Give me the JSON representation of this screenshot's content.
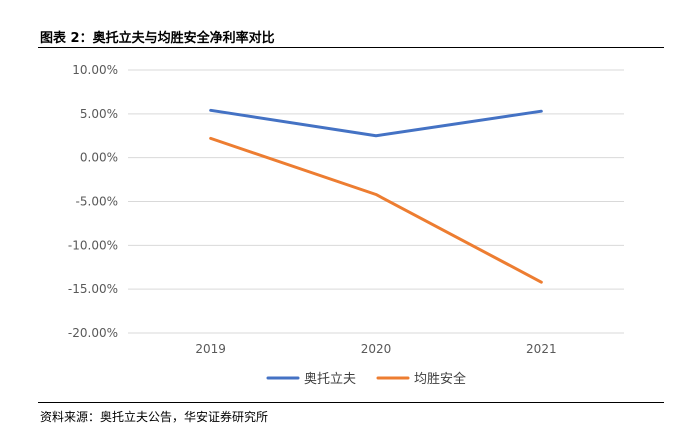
{
  "figure": {
    "title": "图表 2：奥托立夫与均胜安全净利率对比",
    "source": "资料来源：奥托立夫公告，华安证券研究所"
  },
  "chart_data": {
    "type": "line",
    "title": "",
    "xlabel": "",
    "ylabel": "",
    "categories": [
      "2019",
      "2020",
      "2021"
    ],
    "y_ticks": [
      "10.00%",
      "5.00%",
      "0.00%",
      "-5.00%",
      "-10.00%",
      "-15.00%",
      "-20.00%"
    ],
    "ylim": [
      -20,
      10
    ],
    "y_unit": "%",
    "grid": true,
    "legend_position": "bottom",
    "series": [
      {
        "name": "奥托立夫",
        "color": "#4472C4",
        "values": [
          5.4,
          2.5,
          5.3
        ]
      },
      {
        "name": "均胜安全",
        "color": "#ED7D31",
        "values": [
          2.2,
          -4.2,
          -14.2
        ]
      }
    ]
  }
}
